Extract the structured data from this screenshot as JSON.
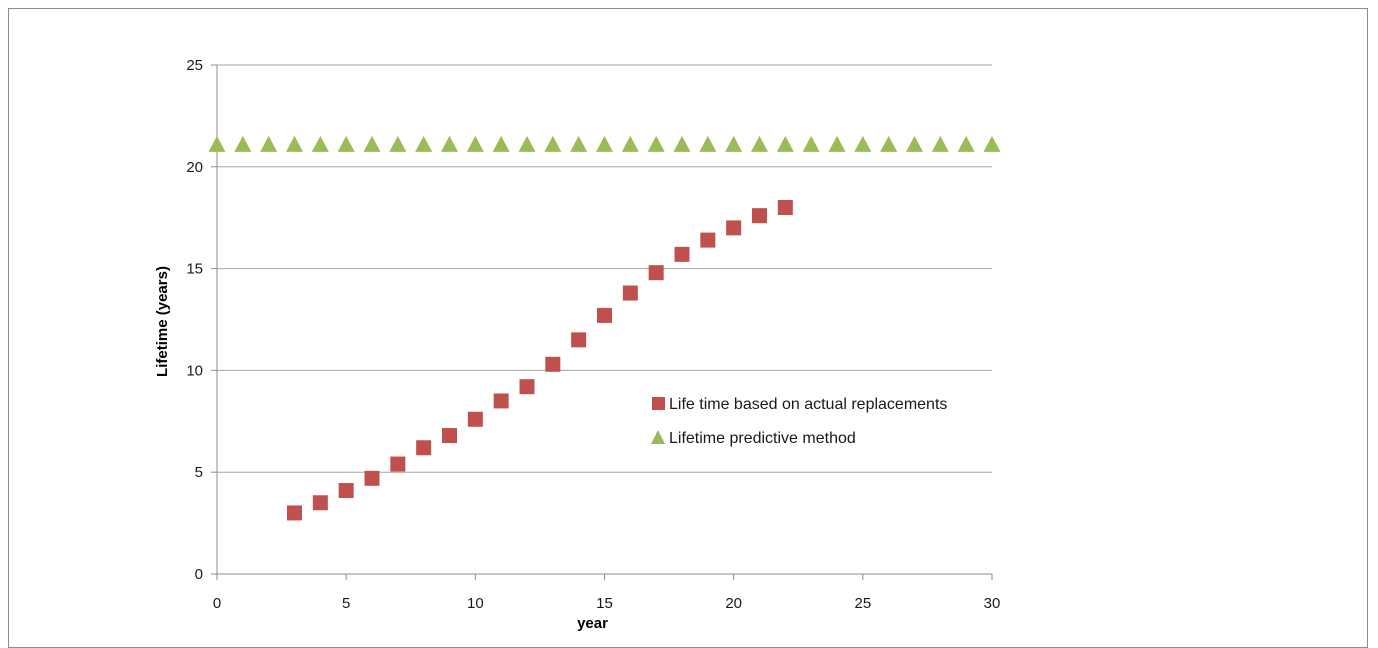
{
  "chart_data": {
    "type": "scatter",
    "title": "",
    "xlabel": "year",
    "ylabel": "Lifetime (years)",
    "xlim": [
      0,
      30
    ],
    "ylim": [
      0,
      25
    ],
    "x_ticks": [
      0,
      5,
      10,
      15,
      20,
      25,
      30
    ],
    "y_ticks": [
      0,
      5,
      10,
      15,
      20,
      25
    ],
    "grid": "horizontal",
    "legend_position": "center-right",
    "series": [
      {
        "name": "Life time based on actual replacements",
        "marker": "square",
        "color": "#c0504d",
        "points": [
          {
            "x": 3,
            "y": 3.0
          },
          {
            "x": 4,
            "y": 3.5
          },
          {
            "x": 5,
            "y": 4.1
          },
          {
            "x": 6,
            "y": 4.7
          },
          {
            "x": 7,
            "y": 5.4
          },
          {
            "x": 8,
            "y": 6.2
          },
          {
            "x": 9,
            "y": 6.8
          },
          {
            "x": 10,
            "y": 7.6
          },
          {
            "x": 11,
            "y": 8.5
          },
          {
            "x": 12,
            "y": 9.2
          },
          {
            "x": 13,
            "y": 10.3
          },
          {
            "x": 14,
            "y": 11.5
          },
          {
            "x": 15,
            "y": 12.7
          },
          {
            "x": 16,
            "y": 13.8
          },
          {
            "x": 17,
            "y": 14.8
          },
          {
            "x": 18,
            "y": 15.7
          },
          {
            "x": 19,
            "y": 16.4
          },
          {
            "x": 20,
            "y": 17.0
          },
          {
            "x": 21,
            "y": 17.6
          },
          {
            "x": 22,
            "y": 18.0
          }
        ]
      },
      {
        "name": "Lifetime predictive method",
        "marker": "triangle",
        "color": "#9bbb59",
        "points": [
          {
            "x": 0,
            "y": 21.1
          },
          {
            "x": 1,
            "y": 21.1
          },
          {
            "x": 2,
            "y": 21.1
          },
          {
            "x": 3,
            "y": 21.1
          },
          {
            "x": 4,
            "y": 21.1
          },
          {
            "x": 5,
            "y": 21.1
          },
          {
            "x": 6,
            "y": 21.1
          },
          {
            "x": 7,
            "y": 21.1
          },
          {
            "x": 8,
            "y": 21.1
          },
          {
            "x": 9,
            "y": 21.1
          },
          {
            "x": 10,
            "y": 21.1
          },
          {
            "x": 11,
            "y": 21.1
          },
          {
            "x": 12,
            "y": 21.1
          },
          {
            "x": 13,
            "y": 21.1
          },
          {
            "x": 14,
            "y": 21.1
          },
          {
            "x": 15,
            "y": 21.1
          },
          {
            "x": 16,
            "y": 21.1
          },
          {
            "x": 17,
            "y": 21.1
          },
          {
            "x": 18,
            "y": 21.1
          },
          {
            "x": 19,
            "y": 21.1
          },
          {
            "x": 20,
            "y": 21.1
          },
          {
            "x": 21,
            "y": 21.1
          },
          {
            "x": 22,
            "y": 21.1
          },
          {
            "x": 23,
            "y": 21.1
          },
          {
            "x": 24,
            "y": 21.1
          },
          {
            "x": 25,
            "y": 21.1
          },
          {
            "x": 26,
            "y": 21.1
          },
          {
            "x": 27,
            "y": 21.1
          },
          {
            "x": 28,
            "y": 21.1
          },
          {
            "x": 29,
            "y": 21.1
          },
          {
            "x": 30,
            "y": 21.1
          }
        ]
      }
    ]
  }
}
